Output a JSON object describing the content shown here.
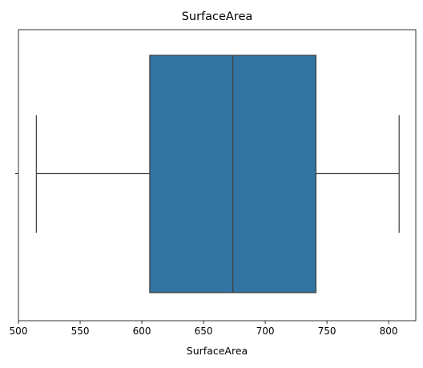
{
  "chart_data": {
    "type": "box",
    "title": "SurfaceArea",
    "xlabel": "SurfaceArea",
    "ylabel": "",
    "orientation": "horizontal",
    "xlim": [
      500,
      822
    ],
    "xticks": [
      500,
      550,
      600,
      650,
      700,
      750,
      800
    ],
    "xtick_labels": [
      "500",
      "550",
      "600",
      "650",
      "700",
      "750",
      "800"
    ],
    "grid": false,
    "legend": "none",
    "box": {
      "whisker_low": 514.5,
      "q1": 606.4,
      "median": 673.8,
      "q3": 741.1,
      "whisker_high": 808.5
    },
    "colors": {
      "box_fill": "#3274a1",
      "box_edge": "#3d3d3d",
      "axis": "#000000"
    }
  }
}
